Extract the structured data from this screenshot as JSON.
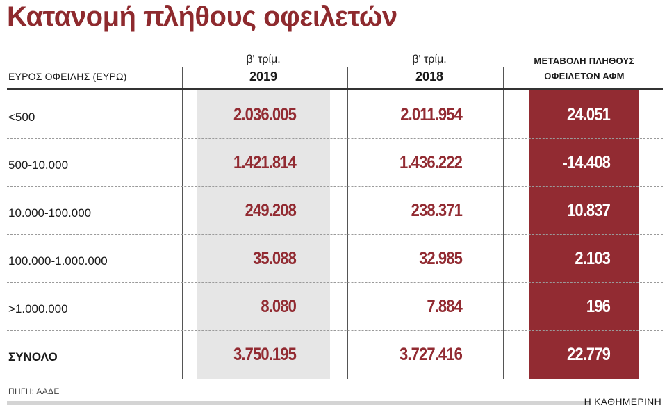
{
  "title": "Κατανομή πλήθους οφειλετών",
  "chart_data": {
    "type": "table",
    "title": "Κατανομή πλήθους οφειλετών",
    "columns": {
      "range_header": "ΕΥΡΟΣ ΟΦΕΙΛΗΣ (ΕΥΡΩ)",
      "q2_2019": {
        "line1": "β' τρίμ.",
        "line2": "2019"
      },
      "q2_2018": {
        "line1": "β' τρίμ.",
        "line2": "2018"
      },
      "change": {
        "line1": "ΜΕΤΑΒΟΛΗ ΠΛΗΘΟΥΣ",
        "line2": "ΟΦΕΙΛΕΤΩΝ ΑΦΜ"
      }
    },
    "rows": [
      {
        "label": "<500",
        "v2019": "2.036.005",
        "v2018": "2.011.954",
        "change": "24.051"
      },
      {
        "label": "500-10.000",
        "v2019": "1.421.814",
        "v2018": "1.436.222",
        "change": "-14.408"
      },
      {
        "label": "10.000-100.000",
        "v2019": "249.208",
        "v2018": "238.371",
        "change": "10.837"
      },
      {
        "label": "100.000-1.000.000",
        "v2019": "35.088",
        "v2018": "32.985",
        "change": "2.103"
      },
      {
        "label": ">1.000.000",
        "v2019": "8.080",
        "v2018": "7.884",
        "change": "196"
      },
      {
        "label": "ΣΥΝΟΛΟ",
        "v2019": "3.750.195",
        "v2018": "3.727.416",
        "change": "22.779"
      }
    ],
    "highlight_colors": {
      "accent": "#922b32",
      "shaded_column": "#e6e6e6"
    }
  },
  "source": "ΠΗΓΗ: ΑΑΔΕ",
  "brand": "Η ΚΑΘΗΜΕΡΙΝΗ"
}
